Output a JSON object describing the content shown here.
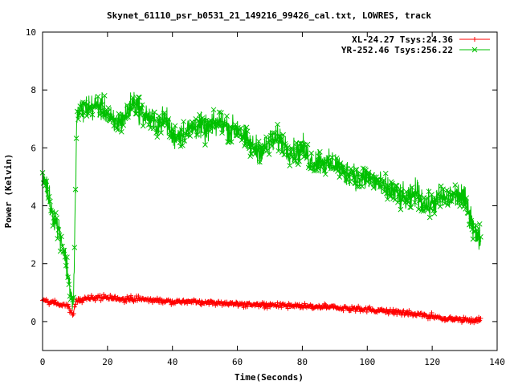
{
  "chart_data": {
    "type": "line",
    "title": "Skynet_61110_psr_b0531_21_149216_99426_cal.txt, LOWRES, track",
    "xlabel": "Time(Seconds)",
    "ylabel": "Power (Kelvin)",
    "xlim": [
      0,
      140
    ],
    "ylim": [
      -1,
      10
    ],
    "xticks": [
      0,
      20,
      40,
      60,
      80,
      100,
      120,
      140
    ],
    "yticks": [
      0,
      2,
      4,
      6,
      8,
      10
    ],
    "grid": false,
    "legend_position": "top-right",
    "series": [
      {
        "name": "XL-24.27 Tsys:24.36",
        "color": "#ff0000",
        "marker": "plus",
        "noise": 0.07,
        "x": [
          0,
          2,
          4,
          6,
          8,
          9,
          9.5,
          10,
          11,
          15,
          20,
          25,
          30,
          40,
          50,
          60,
          70,
          80,
          90,
          100,
          110,
          120,
          125,
          130,
          135
        ],
        "y": [
          0.72,
          0.68,
          0.62,
          0.58,
          0.5,
          0.3,
          0.2,
          0.62,
          0.75,
          0.82,
          0.82,
          0.8,
          0.78,
          0.7,
          0.68,
          0.62,
          0.58,
          0.52,
          0.48,
          0.42,
          0.32,
          0.18,
          0.1,
          0.05,
          0.02
        ]
      },
      {
        "name": "YR-252.46 Tsys:256.22",
        "color": "#00c000",
        "marker": "cross",
        "noise": 0.32,
        "x": [
          0,
          1,
          2,
          3,
          4,
          5,
          6,
          7,
          8,
          9,
          9.5,
          10,
          10.5,
          11,
          13,
          15,
          17,
          20,
          22,
          25,
          28,
          30,
          33,
          35,
          38,
          40,
          43,
          45,
          48,
          50,
          53,
          55,
          58,
          60,
          63,
          65,
          68,
          70,
          73,
          75,
          78,
          80,
          83,
          85,
          88,
          90,
          93,
          95,
          98,
          100,
          103,
          105,
          108,
          110,
          113,
          115,
          118,
          120,
          123,
          125,
          128,
          130,
          132,
          134,
          135
        ],
        "y": [
          5.1,
          4.8,
          4.3,
          3.8,
          3.5,
          3.2,
          2.8,
          2.2,
          1.5,
          0.8,
          0.4,
          3.5,
          6.8,
          7.2,
          7.4,
          7.4,
          7.5,
          7.2,
          6.8,
          7.0,
          7.6,
          7.3,
          7.0,
          6.8,
          7.0,
          6.4,
          6.5,
          6.6,
          6.8,
          6.6,
          6.8,
          6.9,
          6.6,
          6.7,
          6.2,
          6.0,
          5.9,
          6.2,
          6.3,
          6.0,
          5.8,
          6.0,
          5.5,
          5.6,
          5.4,
          5.5,
          5.1,
          5.2,
          4.9,
          5.0,
          4.8,
          4.6,
          4.5,
          4.3,
          4.2,
          4.5,
          4.0,
          4.1,
          4.3,
          4.2,
          4.4,
          4.2,
          3.6,
          2.8,
          3.0
        ]
      }
    ]
  }
}
